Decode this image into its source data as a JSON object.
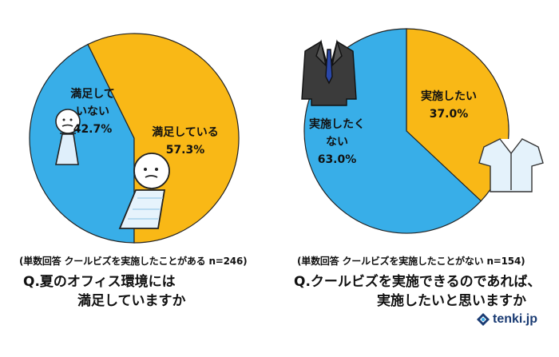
{
  "colors": {
    "blue": "#38aee8",
    "yellow": "#f9b816",
    "outline": "#222222"
  },
  "chart_data": [
    {
      "type": "pie",
      "slices": [
        {
          "label_lines": [
            "満足して",
            "いない"
          ],
          "value": 42.7,
          "value_label": "42.7%",
          "color": "#38aee8"
        },
        {
          "label_lines": [
            "満足している"
          ],
          "value": 57.3,
          "value_label": "57.3%",
          "color": "#f9b816"
        }
      ],
      "note": "(単数回答 クールビズを実施したことがある n=246)",
      "question_lines": [
        "Q.夏のオフィス環境には",
        "満足していますか"
      ]
    },
    {
      "type": "pie",
      "slices": [
        {
          "label_lines": [
            "実施したい"
          ],
          "value": 37.0,
          "value_label": "37.0%",
          "color": "#f9b816"
        },
        {
          "label_lines": [
            "実施したく",
            "ない"
          ],
          "value": 63.0,
          "value_label": "63.0%",
          "color": "#38aee8"
        }
      ],
      "note": "(単数回答 クールビズを実施したことがない n=154)",
      "question_lines": [
        "Q.クールビズを実施できるのであれば、",
        "実施したいと思いますか"
      ]
    }
  ],
  "brand": {
    "name": "tenki.jp",
    "icon": "tenki-logo-icon"
  }
}
